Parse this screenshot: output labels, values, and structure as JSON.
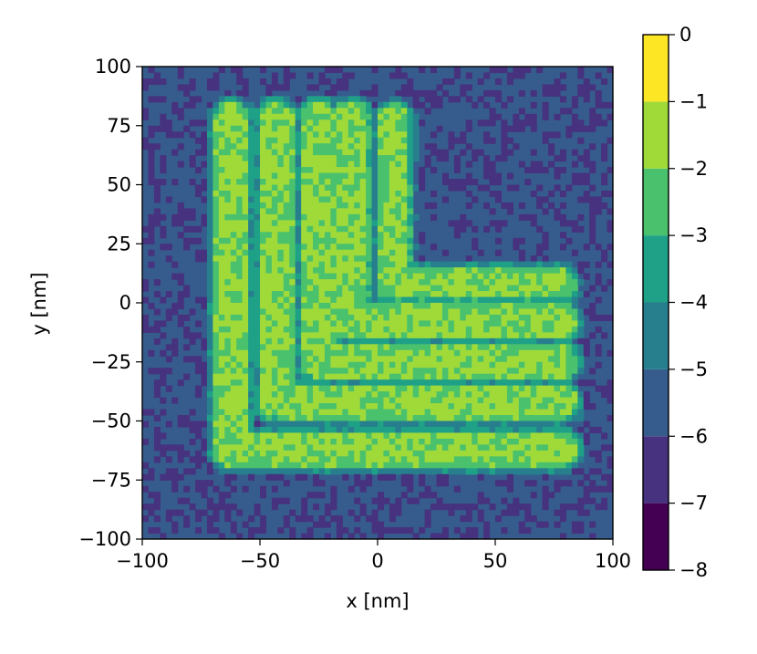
{
  "chart_data": {
    "type": "heatmap",
    "title": "",
    "xlabel": "x [nm]",
    "ylabel": "y [nm]",
    "xlim": [
      -100,
      100
    ],
    "ylim": [
      -100,
      100
    ],
    "x_ticks": [
      -100,
      -50,
      0,
      50,
      100
    ],
    "y_ticks": [
      -100,
      -75,
      -50,
      -25,
      0,
      25,
      50,
      75,
      100
    ],
    "colorbar": {
      "min": -8,
      "max": 0,
      "levels": [
        -8,
        -7,
        -6,
        -5,
        -4,
        -3,
        -2,
        -1,
        0
      ],
      "tick_values": [
        0,
        -1,
        -2,
        -3,
        -4,
        -5,
        -6,
        -7,
        -8
      ],
      "colors": [
        "#440154",
        "#46327e",
        "#365c8d",
        "#277f8e",
        "#1fa187",
        "#4ac16d",
        "#a0da39",
        "#fde725"
      ]
    },
    "background_level": -5.8,
    "pattern": [
      {
        "name": "L-line-1",
        "vertical_x": -62,
        "corner_y": -62,
        "top_y": 78,
        "right_x": 78,
        "half_width": 6,
        "level": -1.8
      },
      {
        "name": "L-line-2",
        "vertical_x": -43,
        "corner_y": -42,
        "top_y": 78,
        "right_x": 78,
        "half_width": 6,
        "level": -1.9
      },
      {
        "name": "L-line-3",
        "vertical_x": -25,
        "corner_y": -25,
        "top_y": 78,
        "right_x": 78,
        "half_width": 6,
        "level": -1.9
      },
      {
        "name": "L-line-4",
        "vertical_x": -11,
        "corner_y": -8,
        "top_y": 78,
        "right_x": 78,
        "half_width": 6,
        "level": -1.9
      },
      {
        "name": "L-line-5",
        "vertical_x": 7,
        "corner_y": 8,
        "top_y": 78,
        "right_x": 78,
        "half_width": 5,
        "level": -2.1
      }
    ]
  }
}
